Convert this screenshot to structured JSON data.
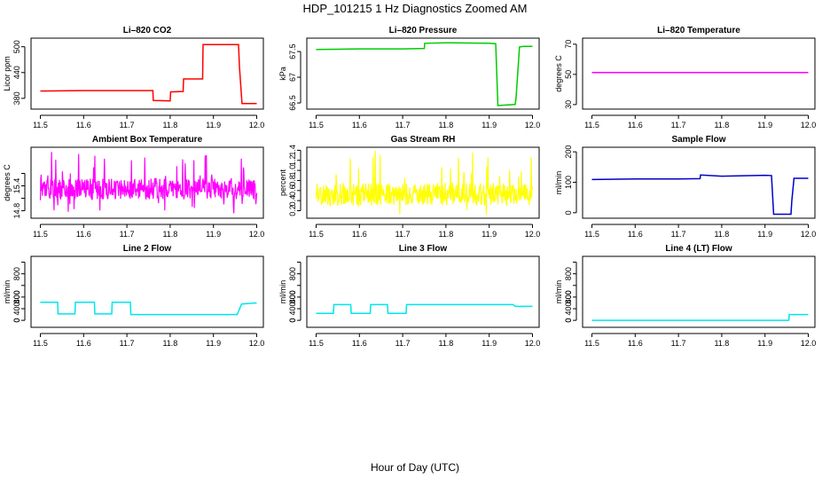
{
  "figure": {
    "title": "HDP_101215  1 Hz Diagnostics Zoomed AM",
    "xlabel": "Hour of Day (UTC)"
  },
  "chart_data": [
    {
      "type": "line",
      "title": "Li–820 CO2",
      "ylabel": "Licor ppm",
      "color": "#ff0000",
      "xlim": [
        11.5,
        12.0
      ],
      "xticks": [
        "11.5",
        "11.6",
        "11.7",
        "11.8",
        "11.9",
        "12.0"
      ],
      "ylim": [
        355,
        520
      ],
      "yticks": [
        380,
        440,
        500
      ],
      "ytick_labels": [
        "380",
        "440",
        "500"
      ],
      "series": [
        {
          "x": [
            11.5,
            11.6,
            11.76,
            11.761,
            11.8,
            11.801,
            11.83,
            11.831,
            11.875,
            11.876,
            11.958,
            11.96,
            11.966,
            12.0
          ],
          "y": [
            397,
            398,
            398,
            375,
            374,
            395,
            396,
            425,
            425,
            505,
            505,
            455,
            368,
            368
          ]
        }
      ]
    },
    {
      "type": "line",
      "title": "Li–820 Pressure",
      "ylabel": "kPa",
      "color": "#00cc00",
      "xlim": [
        11.5,
        12.0
      ],
      "xticks": [
        "11.5",
        "11.6",
        "11.7",
        "11.8",
        "11.9",
        "12.0"
      ],
      "ylim": [
        66.38,
        67.76
      ],
      "yticks": [
        66.5,
        67.0,
        67.5
      ],
      "ytick_labels": [
        "66.5",
        "67",
        "67.5"
      ],
      "series": [
        {
          "x": [
            11.5,
            11.6,
            11.7,
            11.75,
            11.751,
            11.8,
            11.9,
            11.915,
            11.92,
            11.96,
            11.962,
            11.97,
            11.98,
            12.0
          ],
          "y": [
            67.54,
            67.55,
            67.55,
            67.56,
            67.66,
            67.67,
            67.66,
            67.65,
            66.45,
            66.47,
            66.6,
            67.59,
            67.6,
            67.6
          ]
        }
      ]
    },
    {
      "type": "line",
      "title": "Li–820 Temperature",
      "ylabel": "degrees C",
      "color": "#ff00ff",
      "xlim": [
        11.5,
        12.0
      ],
      "xticks": [
        "11.5",
        "11.6",
        "11.7",
        "11.8",
        "11.9",
        "12.0"
      ],
      "ylim": [
        27,
        74
      ],
      "yticks": [
        30,
        50,
        70
      ],
      "ytick_labels": [
        "30",
        "50",
        "70"
      ],
      "series": [
        {
          "x": [
            11.5,
            12.0
          ],
          "y": [
            51.2,
            51.2
          ]
        }
      ]
    },
    {
      "type": "line",
      "title": "Ambient Box Temperature",
      "ylabel": "degrees C",
      "color": "#ff00ff",
      "noise": true,
      "xlim": [
        11.5,
        12.0
      ],
      "xticks": [
        "11.5",
        "11.6",
        "11.7",
        "11.8",
        "11.9",
        "12.0"
      ],
      "ylim": [
        14.68,
        15.82
      ],
      "yticks": [
        14.8,
        15.0,
        15.2,
        15.4
      ],
      "ytick_labels": [
        "14.8",
        "",
        "15.4",
        ""
      ],
      "series": [
        {
          "x": [
            11.5,
            12.0
          ],
          "y": [
            15.2,
            15.2
          ],
          "lo": 14.75,
          "hi": 15.75,
          "band": [
            14.98,
            15.32
          ]
        }
      ]
    },
    {
      "type": "line",
      "title": "Gas Stream RH",
      "ylabel": "percent",
      "color": "#ffff00",
      "noise": true,
      "xlim": [
        11.5,
        12.0
      ],
      "xticks": [
        "11.5",
        "11.6",
        "11.7",
        "11.8",
        "11.9",
        "12.0"
      ],
      "ylim": [
        0.05,
        1.46
      ],
      "yticks": [
        0.2,
        0.4,
        0.6,
        0.8,
        1.0,
        1.2,
        1.4
      ],
      "ytick_labels": [
        "0.2",
        "0.4",
        "0.6",
        "0.8",
        "1.0",
        "1.2",
        "1.4"
      ],
      "series": [
        {
          "x": [
            11.5,
            12.0
          ],
          "y": [
            0.55,
            0.55
          ],
          "lo": 0.1,
          "hi": 1.4,
          "band": [
            0.3,
            0.75
          ]
        }
      ]
    },
    {
      "type": "line",
      "title": "Sample Flow",
      "ylabel": "ml/min",
      "color": "#0000cc",
      "xlim": [
        11.5,
        12.0
      ],
      "xticks": [
        "11.5",
        "11.6",
        "11.7",
        "11.8",
        "11.9",
        "12.0"
      ],
      "ylim": [
        -18,
        215
      ],
      "yticks": [
        0,
        100,
        200
      ],
      "ytick_labels": [
        "0",
        "100",
        "200"
      ],
      "series": [
        {
          "x": [
            11.5,
            11.6,
            11.7,
            11.75,
            11.751,
            11.8,
            11.9,
            11.915,
            11.92,
            11.96,
            11.962,
            11.967,
            12.0
          ],
          "y": [
            109,
            111,
            111,
            112,
            124,
            120,
            123,
            122,
            -5,
            -5,
            40,
            113,
            113
          ]
        }
      ]
    },
    {
      "type": "line",
      "title": "Line 2 Flow",
      "ylabel": "ml/min",
      "color": "#00e5ee",
      "xlim": [
        11.5,
        12.0
      ],
      "xticks": [
        "11.5",
        "11.6",
        "11.7",
        "11.8",
        "11.9",
        "12.0"
      ],
      "ylim": [
        -120,
        1100
      ],
      "yticks": [
        0,
        200,
        400,
        600,
        800,
        1000
      ],
      "ytick_labels": [
        "0",
        "400",
        "800"
      ],
      "series": [
        {
          "x": [
            11.5,
            11.54,
            11.541,
            11.58,
            11.581,
            11.625,
            11.626,
            11.665,
            11.666,
            11.708,
            11.709,
            11.955,
            11.965,
            12.0
          ],
          "y": [
            310,
            310,
            110,
            110,
            310,
            310,
            110,
            110,
            310,
            310,
            100,
            100,
            280,
            300
          ]
        }
      ]
    },
    {
      "type": "line",
      "title": "Line 3 Flow",
      "ylabel": "ml/min",
      "color": "#00e5ee",
      "xlim": [
        11.5,
        12.0
      ],
      "xticks": [
        "11.5",
        "11.6",
        "11.7",
        "11.8",
        "11.9",
        "12.0"
      ],
      "ylim": [
        -120,
        1100
      ],
      "yticks": [
        0,
        200,
        400,
        600,
        800,
        1000
      ],
      "ytick_labels": [
        "0",
        "400",
        "800"
      ],
      "series": [
        {
          "x": [
            11.5,
            11.54,
            11.541,
            11.58,
            11.581,
            11.625,
            11.626,
            11.665,
            11.666,
            11.708,
            11.709,
            11.955,
            11.96,
            12.0
          ],
          "y": [
            120,
            120,
            270,
            270,
            120,
            120,
            270,
            270,
            120,
            120,
            270,
            270,
            240,
            240
          ]
        }
      ]
    },
    {
      "type": "line",
      "title": "Line 4 (LT) Flow",
      "ylabel": "ml/min",
      "color": "#00e5ee",
      "xlim": [
        11.5,
        12.0
      ],
      "xticks": [
        "11.5",
        "11.6",
        "11.7",
        "11.8",
        "11.9",
        "12.0"
      ],
      "ylim": [
        -120,
        1100
      ],
      "yticks": [
        0,
        200,
        400,
        600,
        800,
        1000
      ],
      "ytick_labels": [
        "0",
        "400",
        "800"
      ],
      "series": [
        {
          "x": [
            11.5,
            11.955,
            11.956,
            12.0
          ],
          "y": [
            0,
            0,
            100,
            100
          ]
        }
      ]
    }
  ]
}
